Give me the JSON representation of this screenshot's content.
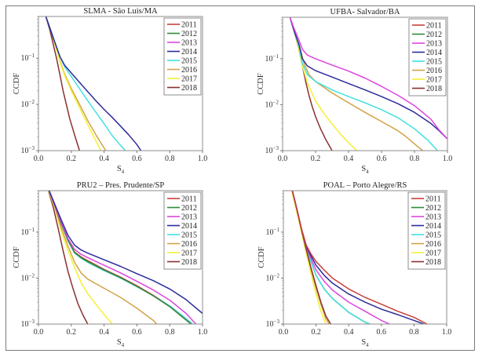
{
  "figure": {
    "series_colors": {
      "2011": "#c8403a",
      "2012": "#2e8b3a",
      "2013": "#dd44dd",
      "2014": "#2c2c9c",
      "2015": "#44e0e0",
      "2016": "#d4a248",
      "2017": "#f4f036",
      "2018": "#8a3030"
    }
  },
  "chart_data": [
    {
      "type": "line",
      "title": "SLMA  - São Luis/MA",
      "xlabel": "S4",
      "ylabel": "CCDF",
      "xscale": "linear",
      "yscale": "log",
      "xlim": [
        0.0,
        1.0
      ],
      "ylim": [
        0.001,
        0.8
      ],
      "xticks": [
        "0.0",
        "0.2",
        "0.4",
        "0.6",
        "0.8",
        "1.0"
      ],
      "yticks": [
        "10^-1",
        "10^-2",
        "10^-3"
      ],
      "legend": [
        "2011",
        "2012",
        "2013",
        "2014",
        "2015",
        "2016",
        "2017",
        "2018"
      ],
      "legend_position": "top-right",
      "series": [
        {
          "name": "2011",
          "x": [],
          "y": []
        },
        {
          "name": "2012",
          "x": [],
          "y": []
        },
        {
          "name": "2013",
          "x": [],
          "y": []
        },
        {
          "name": "2016",
          "x": [
            0.045,
            0.07,
            0.1,
            0.13,
            0.16,
            0.2,
            0.25,
            0.3,
            0.35,
            0.41
          ],
          "y": [
            0.8,
            0.45,
            0.2,
            0.09,
            0.045,
            0.022,
            0.01,
            0.0045,
            0.0022,
            0.001
          ]
        },
        {
          "name": "2017",
          "x": [
            0.045,
            0.07,
            0.1,
            0.13,
            0.16,
            0.2,
            0.25,
            0.3,
            0.34,
            0.38
          ],
          "y": [
            0.8,
            0.45,
            0.2,
            0.085,
            0.042,
            0.02,
            0.0085,
            0.0037,
            0.0019,
            0.001
          ]
        },
        {
          "name": "2018",
          "x": [
            0.045,
            0.07,
            0.09,
            0.11,
            0.13,
            0.15,
            0.17,
            0.19,
            0.22,
            0.25
          ],
          "y": [
            0.8,
            0.4,
            0.2,
            0.1,
            0.045,
            0.02,
            0.01,
            0.005,
            0.0022,
            0.001
          ]
        },
        {
          "name": "2015",
          "x": [
            0.045,
            0.07,
            0.1,
            0.13,
            0.16,
            0.2,
            0.25,
            0.3,
            0.35,
            0.4,
            0.45,
            0.5,
            0.53
          ],
          "y": [
            0.8,
            0.45,
            0.22,
            0.11,
            0.065,
            0.04,
            0.022,
            0.012,
            0.0068,
            0.0038,
            0.0021,
            0.0013,
            0.001
          ]
        },
        {
          "name": "2014",
          "x": [
            0.045,
            0.07,
            0.1,
            0.13,
            0.16,
            0.2,
            0.25,
            0.3,
            0.35,
            0.4,
            0.45,
            0.5,
            0.55,
            0.6,
            0.625
          ],
          "y": [
            0.8,
            0.45,
            0.22,
            0.11,
            0.07,
            0.048,
            0.03,
            0.019,
            0.012,
            0.0078,
            0.0052,
            0.0034,
            0.0022,
            0.00135,
            0.001
          ]
        }
      ]
    },
    {
      "type": "line",
      "title": "UFBA- Salvador/BA",
      "xlabel": "S4",
      "ylabel": "CCDF",
      "xscale": "linear",
      "yscale": "log",
      "xlim": [
        0.0,
        1.0
      ],
      "ylim": [
        0.001,
        0.8
      ],
      "xticks": [
        "0.0",
        "0.2",
        "0.4",
        "0.6",
        "0.8",
        "1.0"
      ],
      "yticks": [
        "10^-1",
        "10^-2",
        "10^-3"
      ],
      "legend": [
        "2011",
        "2012",
        "2013",
        "2014",
        "2015",
        "2016",
        "2017",
        "2018"
      ],
      "legend_position": "top-right",
      "series": [
        {
          "name": "2011",
          "x": [],
          "y": []
        },
        {
          "name": "2012",
          "x": [],
          "y": []
        },
        {
          "name": "2018",
          "x": [
            0.045,
            0.07,
            0.1,
            0.12,
            0.14,
            0.16,
            0.18,
            0.2,
            0.23,
            0.26,
            0.3
          ],
          "y": [
            0.8,
            0.4,
            0.15,
            0.07,
            0.032,
            0.016,
            0.009,
            0.0055,
            0.003,
            0.0018,
            0.001
          ]
        },
        {
          "name": "2017",
          "x": [
            0.045,
            0.07,
            0.1,
            0.12,
            0.15,
            0.2,
            0.25,
            0.3,
            0.35,
            0.4,
            0.45
          ],
          "y": [
            0.8,
            0.4,
            0.15,
            0.07,
            0.03,
            0.012,
            0.0065,
            0.0038,
            0.0023,
            0.0015,
            0.001
          ]
        },
        {
          "name": "2016",
          "x": [
            0.045,
            0.07,
            0.1,
            0.13,
            0.16,
            0.2,
            0.3,
            0.4,
            0.5,
            0.6,
            0.7,
            0.75,
            0.8,
            0.85
          ],
          "y": [
            0.8,
            0.4,
            0.2,
            0.08,
            0.045,
            0.032,
            0.018,
            0.011,
            0.0068,
            0.0043,
            0.0027,
            0.002,
            0.0014,
            0.001
          ]
        },
        {
          "name": "2015",
          "x": [
            0.045,
            0.07,
            0.1,
            0.12,
            0.15,
            0.2,
            0.3,
            0.4,
            0.5,
            0.6,
            0.7,
            0.8,
            0.88,
            0.94
          ],
          "y": [
            0.8,
            0.4,
            0.18,
            0.08,
            0.045,
            0.032,
            0.021,
            0.015,
            0.011,
            0.0078,
            0.0052,
            0.003,
            0.0017,
            0.001
          ]
        },
        {
          "name": "2014",
          "x": [
            0.045,
            0.07,
            0.1,
            0.12,
            0.15,
            0.2,
            0.3,
            0.4,
            0.5,
            0.6,
            0.7,
            0.8,
            0.9,
            0.95,
            1.0
          ],
          "y": [
            0.8,
            0.4,
            0.2,
            0.1,
            0.07,
            0.055,
            0.04,
            0.029,
            0.021,
            0.015,
            0.0105,
            0.0068,
            0.0039,
            0.0027,
            0.0018
          ]
        },
        {
          "name": "2013",
          "x": [
            0.045,
            0.07,
            0.1,
            0.12,
            0.15,
            0.2,
            0.3,
            0.4,
            0.5,
            0.6,
            0.7,
            0.8,
            0.9,
            0.95,
            1.0
          ],
          "y": [
            0.8,
            0.45,
            0.25,
            0.16,
            0.12,
            0.1,
            0.073,
            0.054,
            0.038,
            0.025,
            0.016,
            0.0095,
            0.0048,
            0.0028,
            0.0018
          ]
        }
      ]
    },
    {
      "type": "line",
      "title": "PRU2 – Pres. Prudente/SP",
      "xlabel": "S4",
      "ylabel": "CCDF",
      "xscale": "linear",
      "yscale": "log",
      "xlim": [
        0.0,
        1.0
      ],
      "ylim": [
        0.001,
        0.8
      ],
      "xticks": [
        "0.0",
        "0.2",
        "0.4",
        "0.6",
        "0.8",
        "1.0"
      ],
      "yticks": [
        "10^-1",
        "10^-2",
        "10^-3"
      ],
      "legend": [
        "2011",
        "2012",
        "2013",
        "2014",
        "2015",
        "2016",
        "2017",
        "2018"
      ],
      "legend_position": "top-right",
      "series": [
        {
          "name": "2018",
          "x": [
            0.06,
            0.09,
            0.12,
            0.15,
            0.18,
            0.21,
            0.24,
            0.27,
            0.3
          ],
          "y": [
            0.8,
            0.35,
            0.12,
            0.04,
            0.014,
            0.006,
            0.0028,
            0.0016,
            0.001
          ]
        },
        {
          "name": "2017",
          "x": [
            0.06,
            0.1,
            0.14,
            0.18,
            0.22,
            0.26,
            0.3,
            0.35,
            0.4,
            0.45
          ],
          "y": [
            0.8,
            0.33,
            0.1,
            0.04,
            0.017,
            0.008,
            0.0046,
            0.0027,
            0.0016,
            0.001
          ]
        },
        {
          "name": "2016",
          "x": [
            0.06,
            0.1,
            0.14,
            0.18,
            0.22,
            0.26,
            0.3,
            0.4,
            0.5,
            0.6,
            0.7,
            0.72
          ],
          "y": [
            0.8,
            0.35,
            0.12,
            0.05,
            0.022,
            0.013,
            0.0095,
            0.006,
            0.0038,
            0.0022,
            0.0012,
            0.001
          ]
        },
        {
          "name": "2015",
          "x": [
            0.065,
            0.1,
            0.14,
            0.18,
            0.22,
            0.26,
            0.3,
            0.4,
            0.5,
            0.6,
            0.7,
            0.8,
            0.88,
            0.94
          ],
          "y": [
            0.8,
            0.38,
            0.15,
            0.065,
            0.035,
            0.027,
            0.022,
            0.0145,
            0.01,
            0.0065,
            0.0042,
            0.0025,
            0.0015,
            0.001
          ]
        },
        {
          "name": "2011",
          "x": [
            0.065,
            0.1,
            0.14,
            0.18,
            0.22,
            0.26,
            0.3,
            0.4,
            0.5,
            0.6,
            0.7,
            0.8,
            0.88,
            0.93
          ],
          "y": [
            0.8,
            0.38,
            0.15,
            0.068,
            0.037,
            0.029,
            0.024,
            0.0155,
            0.0105,
            0.0068,
            0.0042,
            0.0024,
            0.0014,
            0.001
          ]
        },
        {
          "name": "2012",
          "x": [
            0.065,
            0.1,
            0.14,
            0.18,
            0.22,
            0.26,
            0.3,
            0.4,
            0.5,
            0.6,
            0.7,
            0.8,
            0.88,
            0.93
          ],
          "y": [
            0.8,
            0.38,
            0.15,
            0.066,
            0.036,
            0.028,
            0.023,
            0.015,
            0.0102,
            0.0066,
            0.0041,
            0.0024,
            0.0014,
            0.001
          ]
        },
        {
          "name": "2013",
          "x": [
            0.065,
            0.1,
            0.14,
            0.18,
            0.22,
            0.26,
            0.3,
            0.4,
            0.5,
            0.6,
            0.7,
            0.8,
            0.9,
            0.96
          ],
          "y": [
            0.8,
            0.38,
            0.16,
            0.072,
            0.042,
            0.033,
            0.028,
            0.019,
            0.013,
            0.0085,
            0.0055,
            0.0033,
            0.0017,
            0.001
          ]
        },
        {
          "name": "2014",
          "x": [
            0.065,
            0.1,
            0.14,
            0.18,
            0.22,
            0.26,
            0.3,
            0.4,
            0.5,
            0.6,
            0.7,
            0.8,
            0.9,
            1.0
          ],
          "y": [
            0.8,
            0.4,
            0.18,
            0.085,
            0.052,
            0.041,
            0.035,
            0.025,
            0.018,
            0.0125,
            0.0088,
            0.0058,
            0.0034,
            0.0017
          ]
        }
      ]
    },
    {
      "type": "line",
      "title": "POAL – Porto Alegre/RS",
      "xlabel": "S4",
      "ylabel": "CCDF",
      "xscale": "linear",
      "yscale": "log",
      "xlim": [
        0.0,
        1.0
      ],
      "ylim": [
        0.001,
        0.8
      ],
      "xticks": [
        "0.0",
        "0.2",
        "0.4",
        "0.6",
        "0.8",
        "1.0"
      ],
      "yticks": [
        "10^-1",
        "10^-2",
        "10^-3"
      ],
      "legend": [
        "2011",
        "2012",
        "2013",
        "2014",
        "2015",
        "2016",
        "2017",
        "2018"
      ],
      "legend_position": "top-right",
      "series": [
        {
          "name": "2012",
          "x": [
            0.055,
            0.08,
            0.11,
            0.14,
            0.17,
            0.2,
            0.25,
            0.3,
            0.4,
            0.5,
            0.53
          ],
          "y": [
            0.8,
            0.35,
            0.12,
            0.045,
            0.022,
            0.0115,
            0.0058,
            0.0036,
            0.0018,
            0.0011,
            0.001
          ]
        },
        {
          "name": "2015",
          "x": [
            0.055,
            0.08,
            0.11,
            0.14,
            0.17,
            0.2,
            0.25,
            0.3,
            0.4,
            0.5,
            0.53
          ],
          "y": [
            0.8,
            0.35,
            0.12,
            0.045,
            0.022,
            0.0115,
            0.0058,
            0.0036,
            0.0018,
            0.0011,
            0.001
          ]
        },
        {
          "name": "2016",
          "x": [
            0.055,
            0.08,
            0.11,
            0.14,
            0.17,
            0.2,
            0.23,
            0.26,
            0.28
          ],
          "y": [
            0.8,
            0.33,
            0.11,
            0.04,
            0.015,
            0.006,
            0.0027,
            0.0013,
            0.001
          ]
        },
        {
          "name": "2017",
          "x": [
            0.05,
            0.08,
            0.11,
            0.14,
            0.17,
            0.2,
            0.23,
            0.26
          ],
          "y": [
            0.8,
            0.3,
            0.1,
            0.035,
            0.012,
            0.0045,
            0.0019,
            0.001
          ]
        },
        {
          "name": "2018",
          "x": [
            0.055,
            0.08,
            0.11,
            0.14,
            0.17,
            0.2,
            0.23,
            0.26,
            0.29
          ],
          "y": [
            0.8,
            0.34,
            0.115,
            0.042,
            0.016,
            0.0068,
            0.003,
            0.0015,
            0.001
          ]
        },
        {
          "name": "2013",
          "x": [
            0.055,
            0.08,
            0.11,
            0.14,
            0.17,
            0.2,
            0.25,
            0.3,
            0.4,
            0.5,
            0.6,
            0.65
          ],
          "y": [
            0.8,
            0.35,
            0.12,
            0.048,
            0.026,
            0.015,
            0.0085,
            0.0055,
            0.003,
            0.0019,
            0.0012,
            0.001
          ]
        },
        {
          "name": "2014",
          "x": [
            0.055,
            0.08,
            0.11,
            0.14,
            0.17,
            0.2,
            0.25,
            0.3,
            0.4,
            0.5,
            0.6,
            0.7,
            0.8,
            0.86
          ],
          "y": [
            0.8,
            0.35,
            0.12,
            0.05,
            0.03,
            0.019,
            0.0115,
            0.0078,
            0.0045,
            0.003,
            0.0021,
            0.0016,
            0.0012,
            0.001
          ]
        },
        {
          "name": "2011",
          "x": [
            0.055,
            0.08,
            0.11,
            0.14,
            0.17,
            0.2,
            0.25,
            0.3,
            0.4,
            0.5,
            0.6,
            0.7,
            0.8,
            0.88
          ],
          "y": [
            0.8,
            0.35,
            0.12,
            0.052,
            0.033,
            0.023,
            0.015,
            0.01,
            0.0058,
            0.0038,
            0.0027,
            0.0019,
            0.0014,
            0.001
          ]
        }
      ]
    }
  ]
}
